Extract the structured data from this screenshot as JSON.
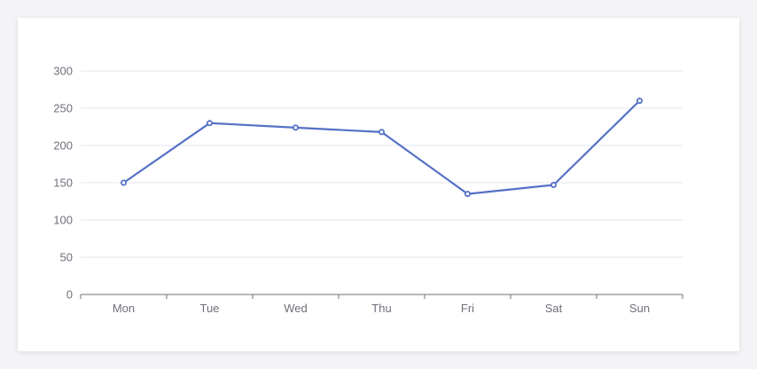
{
  "chart_data": {
    "type": "line",
    "categories": [
      "Mon",
      "Tue",
      "Wed",
      "Thu",
      "Fri",
      "Sat",
      "Sun"
    ],
    "values": [
      150,
      230,
      224,
      218,
      135,
      147,
      260
    ],
    "ylim": [
      0,
      300
    ],
    "yticks": [
      0,
      50,
      100,
      150,
      200,
      250,
      300
    ],
    "grid": true,
    "title": "",
    "xlabel": "",
    "ylabel": "",
    "colors": {
      "line": "#5470c6",
      "grid": "#e0e6f1",
      "axis": "#6e7079",
      "label": "#6e7079"
    }
  }
}
